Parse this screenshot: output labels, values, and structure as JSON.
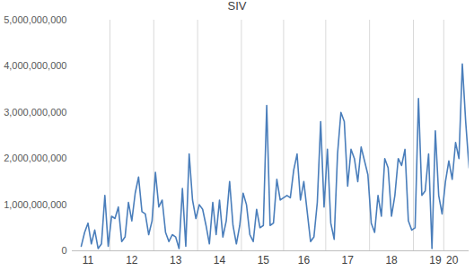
{
  "chart_data": {
    "type": "line",
    "title": "SIV",
    "categories": [
      null,
      null,
      "11",
      null,
      null,
      null,
      null,
      null,
      null,
      null,
      null,
      null,
      null,
      null,
      null,
      "12",
      null,
      null,
      null,
      null,
      null,
      null,
      null,
      null,
      null,
      null,
      null,
      null,
      "13",
      null,
      null,
      null,
      null,
      null,
      null,
      null,
      null,
      null,
      null,
      null,
      null,
      "14",
      null,
      null,
      null,
      null,
      null,
      null,
      null,
      null,
      null,
      null,
      null,
      null,
      "15",
      null,
      null,
      null,
      null,
      null,
      null,
      null,
      null,
      null,
      null,
      null,
      "16",
      null,
      null,
      null,
      null,
      null,
      null,
      null,
      null,
      null,
      null,
      null,
      null,
      "17",
      null,
      null,
      null,
      null,
      null,
      null,
      null,
      null,
      null,
      null,
      null,
      null,
      "18",
      null,
      null,
      null,
      null,
      null,
      null,
      null,
      null,
      null,
      null,
      null,
      null,
      "19",
      null,
      null,
      null,
      null,
      "20",
      null,
      null,
      null,
      null,
      null
    ],
    "values": [
      100000000,
      400000000,
      600000000,
      150000000,
      450000000,
      50000000,
      150000000,
      1200000000,
      100000000,
      750000000,
      700000000,
      950000000,
      200000000,
      300000000,
      1050000000,
      650000000,
      1250000000,
      1600000000,
      850000000,
      800000000,
      350000000,
      650000000,
      1700000000,
      950000000,
      1100000000,
      400000000,
      200000000,
      350000000,
      300000000,
      50000000,
      1350000000,
      100000000,
      2100000000,
      1100000000,
      700000000,
      1000000000,
      900000000,
      550000000,
      150000000,
      1050000000,
      350000000,
      1100000000,
      300000000,
      650000000,
      1500000000,
      550000000,
      150000000,
      550000000,
      1250000000,
      1000000000,
      350000000,
      200000000,
      900000000,
      500000000,
      550000000,
      3150000000,
      550000000,
      600000000,
      1550000000,
      1100000000,
      1150000000,
      1200000000,
      1150000000,
      1750000000,
      2100000000,
      1100000000,
      1500000000,
      850000000,
      200000000,
      300000000,
      1050000000,
      2800000000,
      950000000,
      2200000000,
      600000000,
      250000000,
      2100000000,
      3000000000,
      2800000000,
      1400000000,
      2200000000,
      2000000000,
      1500000000,
      2250000000,
      1950000000,
      1650000000,
      600000000,
      400000000,
      1200000000,
      750000000,
      2000000000,
      1800000000,
      750000000,
      1200000000,
      2000000000,
      1850000000,
      2200000000,
      650000000,
      450000000,
      500000000,
      3300000000,
      1200000000,
      1300000000,
      2100000000,
      50000000,
      2600000000,
      1200000000,
      800000000,
      1500000000,
      1950000000,
      1550000000,
      2350000000,
      2000000000,
      4050000000,
      2800000000,
      1800000000
    ],
    "color": "#4a7ebb",
    "ylim": [
      0,
      5000000000
    ],
    "yticks": [
      0,
      {
        "value": 1000000000,
        "label": "1,000,000,000"
      },
      {
        "value": 2000000000,
        "label": "2,000,000,000"
      },
      {
        "value": 3000000000,
        "label": "3,000,000,000"
      },
      {
        "value": 4000000000,
        "label": "4,000,000,000"
      },
      {
        "value": 5000000000,
        "label": "5,000,000,000"
      }
    ],
    "grid": true
  }
}
